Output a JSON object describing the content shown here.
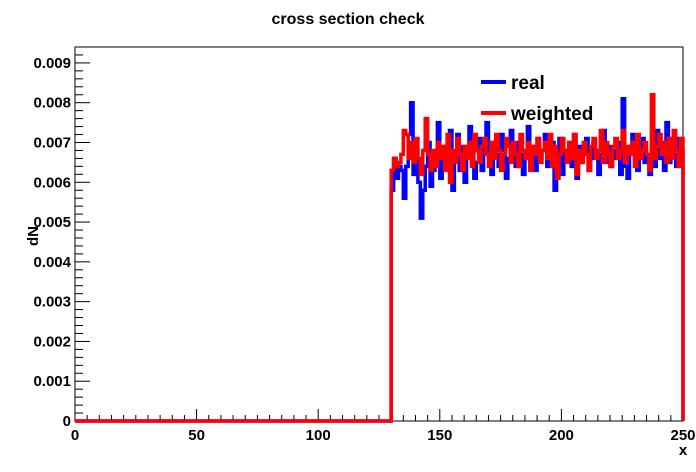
{
  "chart_data": {
    "type": "line",
    "title": "cross section check",
    "xlabel": "x",
    "ylabel": "dN",
    "xlim": [
      0,
      250
    ],
    "ylim": [
      0,
      0.0094
    ],
    "grid": false,
    "legend_position": "top-right",
    "x_ticks": [
      0,
      50,
      100,
      150,
      200,
      250
    ],
    "y_ticks": [
      0,
      0.001,
      0.002,
      0.003,
      0.004,
      0.005,
      0.006,
      0.007,
      0.008,
      0.009
    ],
    "x_tick_labels": [
      "0",
      "50",
      "100",
      "150",
      "200",
      "250"
    ],
    "y_tick_labels": [
      "0",
      "0.001",
      "0.002",
      "0.003",
      "0.004",
      "0.005",
      "0.006",
      "0.007",
      "0.008",
      "0.009"
    ],
    "bin_width": 1,
    "series": [
      {
        "name": "real",
        "color": "#0000ff",
        "x_start": 0,
        "zero_until": 130,
        "values_from_130": [
          0.0058,
          0.0066,
          0.0061,
          0.0064,
          0.0063,
          0.0056,
          0.0064,
          0.0072,
          0.008,
          0.0062,
          0.0068,
          0.006,
          0.0051,
          0.0058,
          0.0064,
          0.007,
          0.0059,
          0.0063,
          0.0066,
          0.0075,
          0.0061,
          0.0067,
          0.0069,
          0.0064,
          0.0073,
          0.0058,
          0.0066,
          0.0072,
          0.0063,
          0.0069,
          0.006,
          0.0066,
          0.0074,
          0.0068,
          0.0061,
          0.0065,
          0.0071,
          0.0063,
          0.0069,
          0.0075,
          0.0066,
          0.0062,
          0.007,
          0.0067,
          0.0064,
          0.0072,
          0.0068,
          0.0061,
          0.0066,
          0.0073,
          0.0069,
          0.0064,
          0.007,
          0.0067,
          0.0062,
          0.0068,
          0.0074,
          0.0065,
          0.0069,
          0.0063,
          0.0071,
          0.0066,
          0.0068,
          0.0072,
          0.0064,
          0.0067,
          0.007,
          0.0058,
          0.0065,
          0.0071,
          0.0062,
          0.0068,
          0.0066,
          0.007,
          0.0064,
          0.0072,
          0.0061,
          0.0069,
          0.0065,
          0.0067,
          0.0071,
          0.0063,
          0.0066,
          0.007,
          0.0068,
          0.0062,
          0.0067,
          0.0073,
          0.0065,
          0.0069,
          0.0064,
          0.0068,
          0.0066,
          0.007,
          0.0062,
          0.0081,
          0.0064,
          0.0061,
          0.0069,
          0.0072,
          0.0066,
          0.0063,
          0.0068,
          0.0071,
          0.0065,
          0.0067,
          0.0062,
          0.0069,
          0.0064,
          0.0073,
          0.0066,
          0.007,
          0.0063,
          0.0075,
          0.0065,
          0.0069,
          0.0067,
          0.0064,
          0.0071,
          0.0068
        ]
      },
      {
        "name": "weighted",
        "color": "#ff0000",
        "x_start": 0,
        "zero_until": 130,
        "values_from_130": [
          0.0063,
          0.0066,
          0.0064,
          0.0065,
          0.0067,
          0.0073,
          0.0072,
          0.0066,
          0.007,
          0.0065,
          0.0071,
          0.0066,
          0.0062,
          0.0068,
          0.0076,
          0.0067,
          0.0063,
          0.0068,
          0.0064,
          0.007,
          0.0066,
          0.0069,
          0.0063,
          0.0072,
          0.006,
          0.0068,
          0.0065,
          0.0071,
          0.0067,
          0.0063,
          0.0069,
          0.0066,
          0.007,
          0.0064,
          0.0072,
          0.0068,
          0.0065,
          0.0069,
          0.0071,
          0.0067,
          0.0064,
          0.007,
          0.0066,
          0.0072,
          0.0068,
          0.0063,
          0.0067,
          0.0071,
          0.0069,
          0.0065,
          0.007,
          0.0067,
          0.0064,
          0.0072,
          0.0068,
          0.0066,
          0.007,
          0.0063,
          0.0069,
          0.0067,
          0.0071,
          0.0065,
          0.0068,
          0.007,
          0.0066,
          0.0072,
          0.0064,
          0.0069,
          0.0061,
          0.0067,
          0.0071,
          0.0068,
          0.0065,
          0.007,
          0.0066,
          0.0072,
          0.0062,
          0.0068,
          0.0065,
          0.007,
          0.0067,
          0.0063,
          0.0069,
          0.0071,
          0.0066,
          0.0068,
          0.0073,
          0.0065,
          0.007,
          0.0067,
          0.0064,
          0.0069,
          0.0071,
          0.0066,
          0.0068,
          0.0073,
          0.0065,
          0.0069,
          0.0067,
          0.007,
          0.0064,
          0.0072,
          0.0066,
          0.0068,
          0.007,
          0.0067,
          0.0063,
          0.0082,
          0.0066,
          0.0069,
          0.0072,
          0.0067,
          0.007,
          0.0065,
          0.0071,
          0.0066,
          0.0073,
          0.0068,
          0.0064,
          0.0071
        ]
      }
    ]
  }
}
